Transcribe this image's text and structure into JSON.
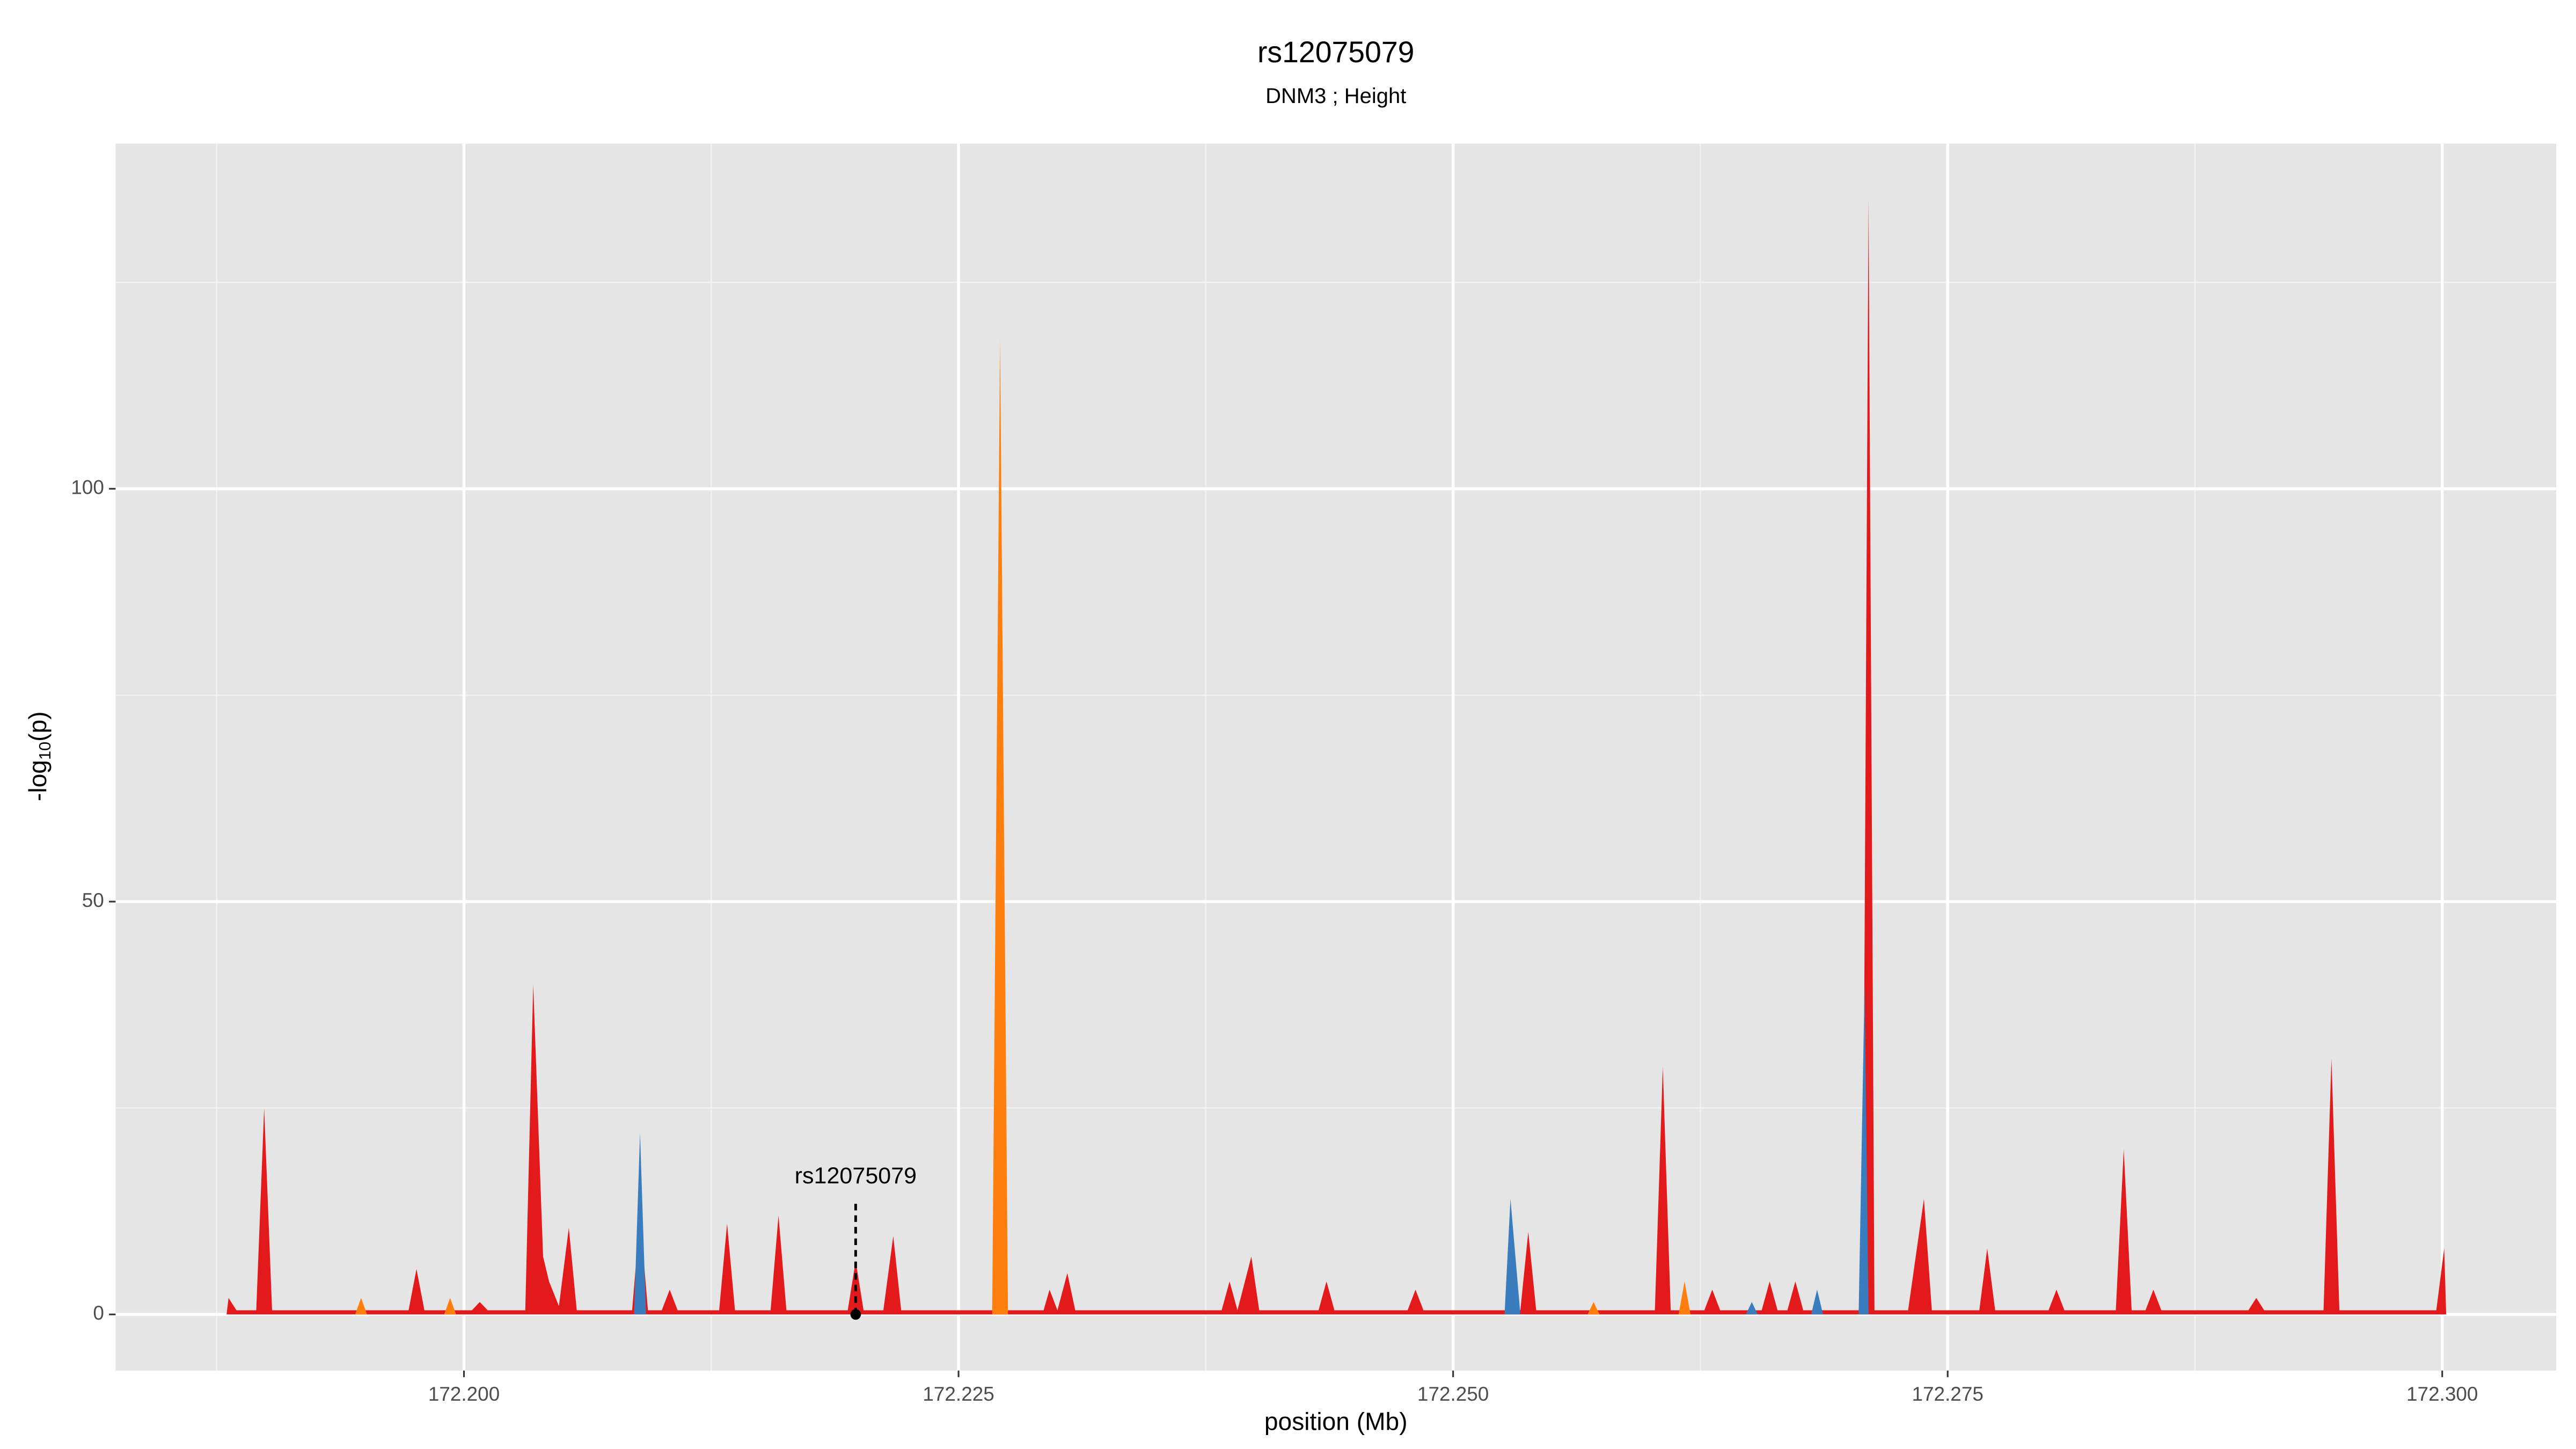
{
  "chart_data": {
    "type": "area",
    "title": "rs12075079",
    "subtitle": "DNM3 ; Height",
    "x_label": "position (Mb)",
    "y_label": {
      "pre": "-log",
      "sub": "10",
      "post": "(p)"
    },
    "xlim": [
      172.18239,
      172.30576
    ],
    "ylim": [
      -6.8,
      141.8
    ],
    "xticks": [
      {
        "value": 172.2,
        "label": "172.200"
      },
      {
        "value": 172.225,
        "label": "172.225"
      },
      {
        "value": 172.25,
        "label": "172.250"
      },
      {
        "value": 172.275,
        "label": "172.275"
      },
      {
        "value": 172.3,
        "label": "172.300"
      }
    ],
    "yticks": [
      0,
      50,
      100
    ],
    "xminor": [
      172.1875,
      172.2125,
      172.2375,
      172.2625,
      172.2875
    ],
    "yminor": [
      25,
      75,
      125
    ],
    "grid": true,
    "panel_color": "#e5e5e5",
    "series": [
      {
        "color": "#e31a1c",
        "x": [
          172.188,
          172.1881,
          172.1885,
          172.1895,
          172.1899,
          172.1903,
          172.1972,
          172.1976,
          172.198,
          172.2004,
          172.2008,
          172.2012,
          172.2031,
          172.2035,
          172.204,
          172.2043,
          172.2048,
          172.2053,
          172.2057,
          172.2085,
          172.2089,
          172.2093,
          172.21,
          172.2104,
          172.2108,
          172.2129,
          172.2133,
          172.2137,
          172.2155,
          172.2159,
          172.2163,
          172.2194,
          172.2198,
          172.2202,
          172.2212,
          172.2217,
          172.2221,
          172.2268,
          172.2271,
          172.2274,
          172.2293,
          172.2296,
          172.23,
          172.2305,
          172.2309,
          172.2383,
          172.2387,
          172.2391,
          172.2398,
          172.2402,
          172.2432,
          172.2436,
          172.244,
          172.2477,
          172.2481,
          172.2485,
          172.2534,
          172.2538,
          172.2542,
          172.2602,
          172.2606,
          172.261,
          172.2627,
          172.2631,
          172.2635,
          172.2656,
          172.266,
          172.2664,
          172.2669,
          172.2673,
          172.2677,
          172.2707,
          172.271,
          172.2713,
          172.273,
          172.2738,
          172.2742,
          172.2766,
          172.277,
          172.2774,
          172.2801,
          172.2805,
          172.2809,
          172.2835,
          172.2839,
          172.2843,
          172.285,
          172.2854,
          172.2858,
          172.2902,
          172.2906,
          172.291,
          172.294,
          172.2944,
          172.2948,
          172.2997,
          172.3001,
          172.3002
        ],
        "values": [
          0,
          2,
          0.5,
          0.5,
          25,
          0.5,
          0.5,
          5.5,
          0.5,
          0.5,
          1.5,
          0.5,
          0.5,
          40,
          7,
          4,
          1,
          10.5,
          0.5,
          0.5,
          12,
          0.5,
          0.5,
          3,
          0.5,
          0.5,
          11,
          0.5,
          0.5,
          12,
          0.5,
          0.5,
          6.5,
          0.5,
          0.5,
          9.5,
          0.5,
          0.5,
          80,
          0.5,
          0.5,
          3,
          0.5,
          5,
          0.5,
          0.5,
          4,
          0.5,
          7,
          0.5,
          0.5,
          4,
          0.5,
          0.5,
          3,
          0.5,
          0.5,
          10,
          0.5,
          0.5,
          30,
          0.5,
          0.5,
          3,
          0.5,
          0.5,
          4,
          0.5,
          0.5,
          4,
          0.5,
          0.5,
          135,
          0.5,
          0.5,
          14,
          0.5,
          0.5,
          8,
          0.5,
          0.5,
          3,
          0.5,
          0.5,
          20,
          0.5,
          0.5,
          3,
          0.5,
          0.5,
          2,
          0.5,
          0.5,
          31,
          0.5,
          0.5,
          8,
          0
        ]
      },
      {
        "color": "#3a7dbf",
        "x": [
          172.2086,
          172.2089,
          172.2092,
          172.2526,
          172.2529,
          172.2534,
          172.2648,
          172.2651,
          172.2654,
          172.2681,
          172.2684,
          172.2687,
          172.2705,
          172.2708,
          172.271
        ],
        "values": [
          0,
          22,
          0,
          0,
          14,
          0,
          0,
          1.5,
          0,
          0,
          3,
          0,
          0,
          40,
          0
        ]
      },
      {
        "color": "#ff7f0e",
        "x": [
          172.1945,
          172.1948,
          172.1951,
          172.199,
          172.1993,
          172.1996,
          172.2267,
          172.2271,
          172.2275,
          172.2568,
          172.2571,
          172.2574,
          172.2614,
          172.2617,
          172.262
        ],
        "values": [
          0,
          2,
          0,
          0,
          2,
          0,
          0,
          118,
          0,
          0,
          1.5,
          0,
          0,
          4,
          0
        ]
      }
    ],
    "annotation": {
      "text": "rs12075079",
      "x": 172.2198,
      "y": 0
    }
  }
}
